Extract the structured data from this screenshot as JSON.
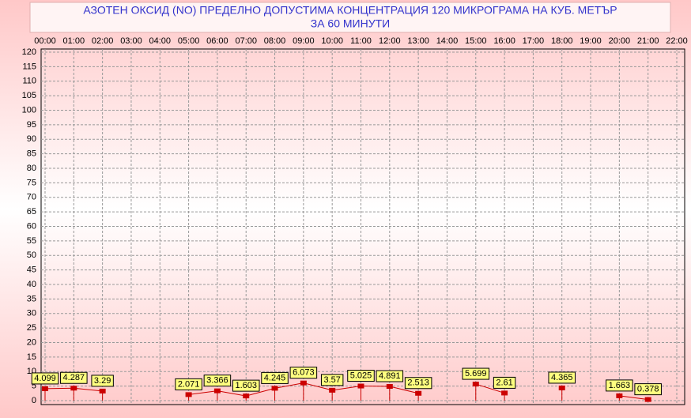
{
  "chart_data": {
    "type": "line",
    "title": "АЗОТЕН ОКСИД   (NO)     ПРЕДЕЛНО ДОПУСТИМА КОНЦЕНТРАЦИЯ 120 МИКРОГРАМА  НА КУБ. МЕТЪР",
    "subtitle": "ЗА 60 МИНУТИ",
    "categories": [
      "00:00",
      "01:00",
      "02:00",
      "03:00",
      "04:00",
      "05:00",
      "06:00",
      "07:00",
      "08:00",
      "09:00",
      "10:00",
      "11:00",
      "12:00",
      "13:00",
      "14:00",
      "15:00",
      "16:00",
      "17:00",
      "18:00",
      "19:00",
      "20:00",
      "21:00",
      "22:00"
    ],
    "values": [
      4.099,
      4.287,
      3.29,
      null,
      null,
      2.071,
      3.366,
      1.603,
      4.245,
      6.073,
      3.57,
      5.025,
      4.891,
      2.513,
      null,
      5.699,
      2.61,
      null,
      4.365,
      null,
      1.663,
      0.378,
      null
    ],
    "color": "#cc0000",
    "label_color": "#ffff80",
    "ylim": [
      0,
      120
    ],
    "yticks": [
      0,
      5,
      10,
      15,
      20,
      25,
      30,
      35,
      40,
      45,
      50,
      55,
      60,
      65,
      70,
      75,
      80,
      85,
      90,
      95,
      100,
      105,
      110,
      115,
      120
    ],
    "grid": true
  }
}
